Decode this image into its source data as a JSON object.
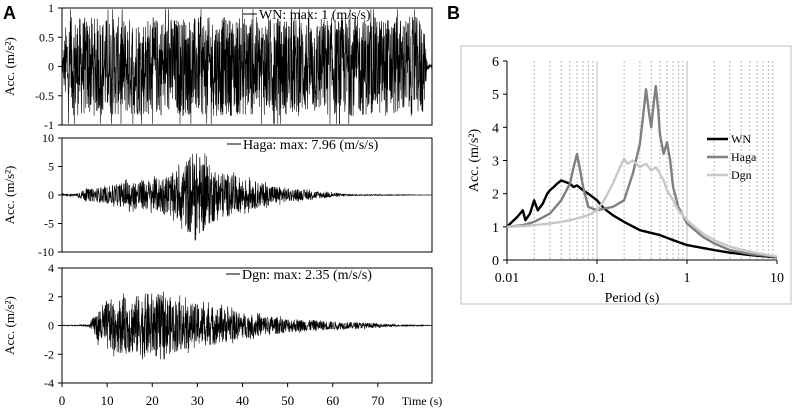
{
  "figure": {
    "panel_a_letter": "A",
    "panel_b_letter": "B"
  },
  "chart_data": [
    {
      "type": "line",
      "panel": "A",
      "legend": "WN: max: 1 (m/s/s)",
      "ylabel": "Acc. (m/s²)",
      "ylim": [
        -1,
        1
      ],
      "yticks": [
        -1,
        -0.5,
        0,
        0.5,
        1
      ],
      "ytick_labels": [
        "-1",
        "-0.5",
        "0",
        "0.5",
        "1"
      ],
      "xlim": [
        0,
        82
      ],
      "x_unit": "s",
      "series": [
        {
          "values": "white noise, whole record",
          "envelope": [
            [
              0,
              0.05
            ],
            [
              1,
              0.85
            ],
            [
              80,
              0.85
            ],
            [
              81,
              0.05
            ],
            [
              82,
              0.05
            ]
          ],
          "max": 1,
          "color": "#000000"
        }
      ]
    },
    {
      "type": "line",
      "panel": "A",
      "legend": "Haga: max: 7.96 (m/s/s)",
      "ylabel": "Acc. (m/s²)",
      "ylim": [
        -10,
        10
      ],
      "yticks": [
        -10,
        -5,
        0,
        5,
        10
      ],
      "ytick_labels": [
        "-10",
        "-5",
        "0",
        "5",
        "10"
      ],
      "xlim": [
        0,
        82
      ],
      "x_unit": "s",
      "series": [
        {
          "envelope": [
            [
              0,
              0.2
            ],
            [
              3,
              0.2
            ],
            [
              5,
              1.0
            ],
            [
              10,
              1.5
            ],
            [
              15,
              2.5
            ],
            [
              20,
              2.8
            ],
            [
              25,
              4.0
            ],
            [
              27,
              5.5
            ],
            [
              29,
              7.96
            ],
            [
              31,
              7.0
            ],
            [
              33,
              5.0
            ],
            [
              36,
              4.0
            ],
            [
              40,
              3.0
            ],
            [
              45,
              2.0
            ],
            [
              50,
              1.2
            ],
            [
              55,
              0.8
            ],
            [
              60,
              0.4
            ],
            [
              65,
              0.1
            ],
            [
              82,
              0.02
            ]
          ],
          "max": 7.96,
          "color": "#000000"
        }
      ]
    },
    {
      "type": "line",
      "panel": "A",
      "legend": "Dgn: max: 2.35 (m/s/s)",
      "ylabel": "Acc. (m/s²)",
      "ylim": [
        -4,
        4
      ],
      "yticks": [
        -4,
        -2,
        0,
        2,
        4
      ],
      "ytick_labels": [
        "-4",
        "-2",
        "0",
        "2",
        "4"
      ],
      "xlim": [
        0,
        82
      ],
      "xticks": [
        0,
        10,
        20,
        30,
        40,
        50,
        60,
        70
      ],
      "xtick_labels": [
        "0",
        "10",
        "20",
        "30",
        "40",
        "50",
        "60",
        "70"
      ],
      "xlabel": "Time (s)",
      "series": [
        {
          "envelope": [
            [
              0,
              0.02
            ],
            [
              6,
              0.05
            ],
            [
              8,
              1.2
            ],
            [
              10,
              1.8
            ],
            [
              15,
              2.0
            ],
            [
              20,
              2.35
            ],
            [
              25,
              1.9
            ],
            [
              30,
              1.5
            ],
            [
              35,
              1.3
            ],
            [
              40,
              0.9
            ],
            [
              45,
              0.7
            ],
            [
              50,
              0.5
            ],
            [
              55,
              0.4
            ],
            [
              60,
              0.3
            ],
            [
              70,
              0.15
            ],
            [
              75,
              0.05
            ],
            [
              82,
              0.02
            ]
          ],
          "max": 2.35,
          "color": "#000000"
        }
      ]
    },
    {
      "type": "line",
      "panel": "B",
      "xscale": "log",
      "xlim": [
        0.01,
        10
      ],
      "ylim": [
        0,
        6
      ],
      "xticks": [
        0.01,
        0.1,
        1,
        10
      ],
      "xtick_labels": [
        "0.01",
        "0.1",
        "1",
        "10"
      ],
      "yticks": [
        0,
        1,
        2,
        3,
        4,
        5,
        6
      ],
      "ytick_labels": [
        "0",
        "1",
        "2",
        "3",
        "4",
        "5",
        "6"
      ],
      "xlabel": "Period (s)",
      "ylabel": "Acc. (m/s²)",
      "grid": "vertical dashed",
      "legend_position": "right",
      "series": [
        {
          "name": "WN",
          "color": "#000000",
          "x": [
            0.01,
            0.013,
            0.015,
            0.016,
            0.018,
            0.02,
            0.022,
            0.025,
            0.028,
            0.03,
            0.033,
            0.036,
            0.04,
            0.045,
            0.05,
            0.055,
            0.06,
            0.07,
            0.08,
            0.1,
            0.12,
            0.15,
            0.2,
            0.3,
            0.5,
            0.7,
            1,
            2,
            3,
            5,
            10
          ],
          "y": [
            1.0,
            1.3,
            1.5,
            1.2,
            1.4,
            1.8,
            1.5,
            1.7,
            2.0,
            2.1,
            2.2,
            2.3,
            2.4,
            2.35,
            2.3,
            2.2,
            2.25,
            2.1,
            2.0,
            1.8,
            1.55,
            1.35,
            1.15,
            0.9,
            0.75,
            0.6,
            0.45,
            0.3,
            0.22,
            0.15,
            0.08
          ]
        },
        {
          "name": "Haga",
          "color": "#808080",
          "x": [
            0.01,
            0.015,
            0.02,
            0.03,
            0.04,
            0.05,
            0.055,
            0.06,
            0.065,
            0.07,
            0.08,
            0.1,
            0.12,
            0.15,
            0.2,
            0.25,
            0.3,
            0.33,
            0.35,
            0.38,
            0.4,
            0.43,
            0.45,
            0.48,
            0.5,
            0.55,
            0.6,
            0.65,
            0.7,
            0.8,
            1,
            1.5,
            2,
            3,
            5,
            10
          ],
          "y": [
            1.0,
            1.05,
            1.15,
            1.4,
            1.8,
            2.3,
            2.8,
            3.2,
            2.7,
            2.2,
            1.6,
            1.5,
            1.55,
            1.6,
            1.8,
            2.6,
            3.5,
            4.5,
            5.15,
            4.4,
            4.0,
            4.8,
            5.25,
            4.5,
            3.8,
            3.2,
            3.55,
            3.0,
            2.2,
            1.6,
            1.1,
            0.7,
            0.5,
            0.3,
            0.18,
            0.1
          ]
        },
        {
          "name": "Dgn",
          "color": "#c8c8c8",
          "x": [
            0.01,
            0.015,
            0.02,
            0.03,
            0.04,
            0.05,
            0.06,
            0.08,
            0.1,
            0.12,
            0.15,
            0.18,
            0.2,
            0.22,
            0.25,
            0.3,
            0.35,
            0.4,
            0.45,
            0.5,
            0.55,
            0.6,
            0.7,
            0.8,
            1,
            1.5,
            2,
            3,
            5,
            10
          ],
          "y": [
            1.0,
            1.02,
            1.05,
            1.1,
            1.15,
            1.2,
            1.25,
            1.35,
            1.5,
            1.8,
            2.3,
            2.8,
            3.05,
            2.9,
            3.0,
            2.8,
            2.9,
            2.7,
            2.8,
            2.6,
            2.4,
            2.1,
            1.8,
            1.5,
            1.2,
            0.8,
            0.6,
            0.4,
            0.25,
            0.1
          ]
        }
      ]
    }
  ]
}
